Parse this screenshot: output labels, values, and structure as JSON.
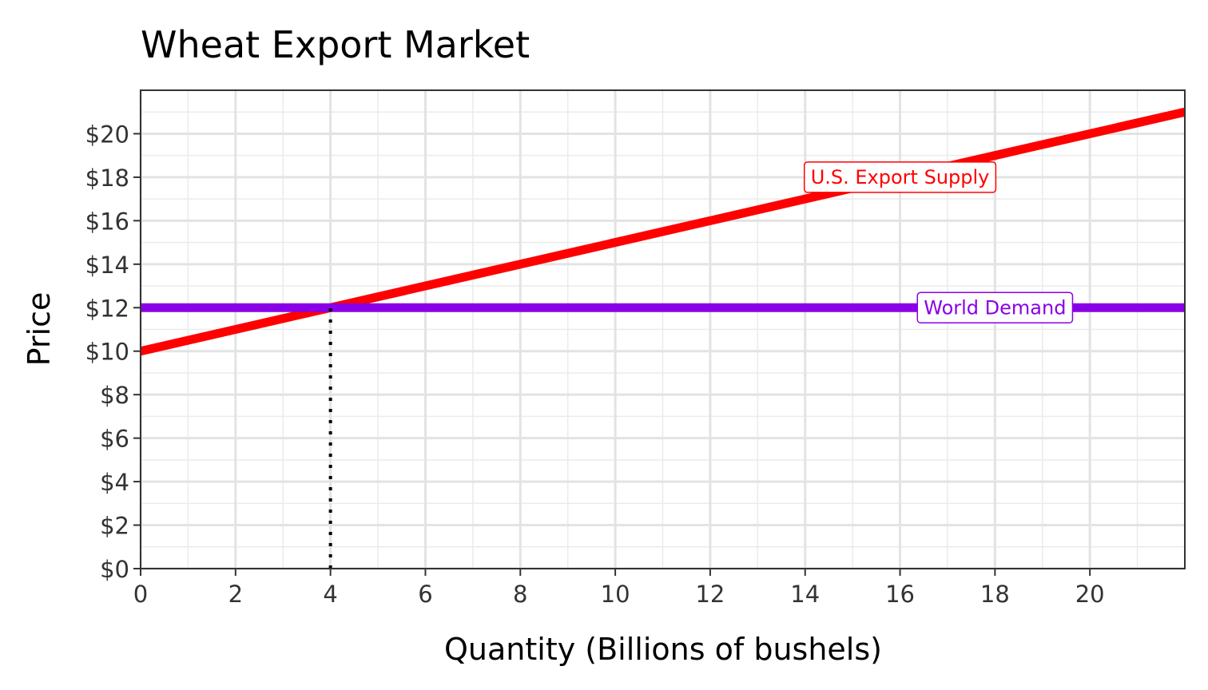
{
  "chart_data": {
    "type": "line",
    "title": "Wheat Export Market",
    "xlabel": "Quantity (Billions of bushels)",
    "ylabel": "Price",
    "xlim": [
      0,
      22
    ],
    "ylim": [
      0,
      22
    ],
    "x_ticks": [
      0,
      2,
      4,
      6,
      8,
      10,
      12,
      14,
      16,
      18,
      20
    ],
    "y_ticks": [
      0,
      2,
      4,
      6,
      8,
      10,
      12,
      14,
      16,
      18,
      20
    ],
    "y_tick_labels": [
      "$0",
      "$2",
      "$4",
      "$6",
      "$8",
      "$10",
      "$12",
      "$14",
      "$16",
      "$18",
      "$20"
    ],
    "x_tick_labels": [
      "0",
      "2",
      "4",
      "6",
      "8",
      "10",
      "12",
      "14",
      "16",
      "18",
      "20"
    ],
    "grid": true,
    "series": [
      {
        "name": "U.S. Export Supply",
        "color": "#ff0000",
        "x": [
          0,
          22
        ],
        "y": [
          10,
          21
        ]
      },
      {
        "name": "World Demand",
        "color": "#8a00e6",
        "x": [
          0,
          22
        ],
        "y": [
          12,
          12
        ]
      }
    ],
    "annotations": [
      {
        "text": "U.S. Export Supply",
        "x": 16,
        "y": 18,
        "color": "#ff0000"
      },
      {
        "text": "World Demand",
        "x": 18,
        "y": 12,
        "color": "#8a00e6"
      }
    ],
    "reference_lines": [
      {
        "type": "vertical",
        "x": 4,
        "y_from": 0,
        "y_to": 12,
        "style": "dotted",
        "color": "#000000"
      }
    ]
  }
}
